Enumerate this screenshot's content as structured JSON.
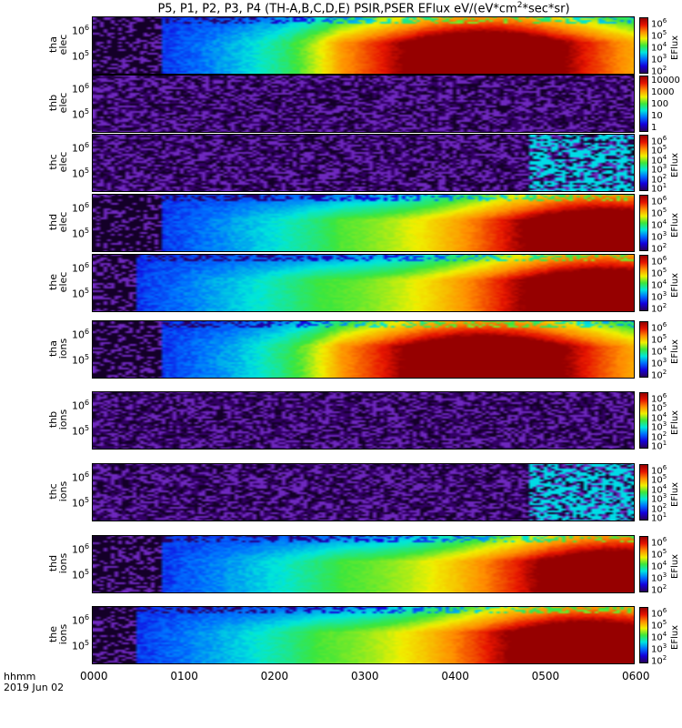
{
  "title_parts": {
    "main": "P5, P1, P2, P3, P4 (TH-A,B,C,D,E) PSIR,PSER EFlux eV/(eV*cm",
    "sup": "2",
    "tail": "*sec*sr)"
  },
  "x_axis": {
    "label_line1": "hhmm",
    "label_line2": "2019 Jun 02",
    "ticks": [
      "0000",
      "0100",
      "0200",
      "0300",
      "0400",
      "0500",
      "0600"
    ]
  },
  "chart_data": [
    {
      "type": "heatmap",
      "probe": "tha",
      "species": "elec",
      "ylabel_lines": [
        "tha",
        "elec"
      ],
      "y_ticks": [
        "10",
        "10"
      ],
      "y_tick_exps": [
        "6",
        "5"
      ],
      "cbar_ticks": [
        {
          "base": "10",
          "exp": "6"
        },
        {
          "base": "10",
          "exp": "5"
        },
        {
          "base": "10",
          "exp": "4"
        },
        {
          "base": "10",
          "exp": "3"
        },
        {
          "base": "10",
          "exp": "2"
        }
      ],
      "cbar_title": "EFlux",
      "data_onset_hhmm": "0045",
      "peak_eflux_time_hhmm": "0420",
      "peak_eflux": 1000000
    },
    {
      "type": "heatmap",
      "probe": "thb",
      "species": "elec",
      "ylabel_lines": [
        "thb",
        "elec"
      ],
      "y_ticks": [
        "10",
        "10"
      ],
      "y_tick_exps": [
        "6",
        "5"
      ],
      "cbar_ticks": [
        {
          "base": "10000",
          "exp": ""
        },
        {
          "base": "1000",
          "exp": ""
        },
        {
          "base": "100",
          "exp": ""
        },
        {
          "base": "10",
          "exp": ""
        },
        {
          "base": "1",
          "exp": ""
        }
      ],
      "cbar_title": "",
      "noise_only": true
    },
    {
      "type": "heatmap",
      "probe": "thc",
      "species": "elec",
      "ylabel_lines": [
        "thc",
        "elec"
      ],
      "y_ticks": [
        "10",
        "10"
      ],
      "y_tick_exps": [
        "6",
        "5"
      ],
      "cbar_ticks": [
        {
          "base": "10",
          "exp": "6"
        },
        {
          "base": "10",
          "exp": "5"
        },
        {
          "base": "10",
          "exp": "4"
        },
        {
          "base": "10",
          "exp": "3"
        },
        {
          "base": "10",
          "exp": "2"
        },
        {
          "base": "10",
          "exp": "1"
        }
      ],
      "cbar_title": "EFlux",
      "noise_only": true,
      "burst_start_hhmm": "0450"
    },
    {
      "type": "heatmap",
      "probe": "thd",
      "species": "elec",
      "ylabel_lines": [
        "thd",
        "elec"
      ],
      "y_ticks": [
        "10",
        "10"
      ],
      "y_tick_exps": [
        "6",
        "5"
      ],
      "cbar_ticks": [
        {
          "base": "10",
          "exp": "6"
        },
        {
          "base": "10",
          "exp": "5"
        },
        {
          "base": "10",
          "exp": "4"
        },
        {
          "base": "10",
          "exp": "3"
        },
        {
          "base": "10",
          "exp": "2"
        }
      ],
      "cbar_title": "EFlux",
      "data_onset_hhmm": "0045",
      "peak_eflux_time_hhmm": "0540",
      "peak_eflux": 1000000
    },
    {
      "type": "heatmap",
      "probe": "the",
      "species": "elec",
      "ylabel_lines": [
        "the",
        "elec"
      ],
      "y_ticks": [
        "10",
        "10"
      ],
      "y_tick_exps": [
        "6",
        "5"
      ],
      "cbar_ticks": [
        {
          "base": "10",
          "exp": "6"
        },
        {
          "base": "10",
          "exp": "5"
        },
        {
          "base": "10",
          "exp": "4"
        },
        {
          "base": "10",
          "exp": "3"
        },
        {
          "base": "10",
          "exp": "2"
        }
      ],
      "cbar_title": "EFlux",
      "data_onset_hhmm": "0030",
      "peak_eflux_time_hhmm": "0540",
      "peak_eflux": 1000000
    },
    {
      "type": "heatmap",
      "probe": "tha",
      "species": "ions",
      "ylabel_lines": [
        "tha",
        "ions"
      ],
      "y_ticks": [
        "10",
        "10"
      ],
      "y_tick_exps": [
        "6",
        "5"
      ],
      "cbar_ticks": [
        {
          "base": "10",
          "exp": "6"
        },
        {
          "base": "10",
          "exp": "5"
        },
        {
          "base": "10",
          "exp": "4"
        },
        {
          "base": "10",
          "exp": "3"
        },
        {
          "base": "10",
          "exp": "2"
        }
      ],
      "cbar_title": "EFlux",
      "data_onset_hhmm": "0045",
      "peak_eflux_time_hhmm": "0420",
      "peak_eflux": 1000000
    },
    {
      "type": "heatmap",
      "probe": "thb",
      "species": "ions",
      "ylabel_lines": [
        "thb",
        "ions"
      ],
      "y_ticks": [
        "10",
        "10"
      ],
      "y_tick_exps": [
        "6",
        "5"
      ],
      "cbar_ticks": [
        {
          "base": "10",
          "exp": "6"
        },
        {
          "base": "10",
          "exp": "5"
        },
        {
          "base": "10",
          "exp": "4"
        },
        {
          "base": "10",
          "exp": "3"
        },
        {
          "base": "10",
          "exp": "2"
        },
        {
          "base": "10",
          "exp": "1"
        }
      ],
      "cbar_title": "EFlux",
      "noise_only": true
    },
    {
      "type": "heatmap",
      "probe": "thc",
      "species": "ions",
      "ylabel_lines": [
        "thc",
        "ions"
      ],
      "y_ticks": [
        "10",
        "10"
      ],
      "y_tick_exps": [
        "6",
        "5"
      ],
      "cbar_ticks": [
        {
          "base": "10",
          "exp": "6"
        },
        {
          "base": "10",
          "exp": "5"
        },
        {
          "base": "10",
          "exp": "4"
        },
        {
          "base": "10",
          "exp": "3"
        },
        {
          "base": "10",
          "exp": "2"
        },
        {
          "base": "10",
          "exp": "1"
        }
      ],
      "cbar_title": "EFlux",
      "noise_only": true,
      "burst_start_hhmm": "0450"
    },
    {
      "type": "heatmap",
      "probe": "thd",
      "species": "ions",
      "ylabel_lines": [
        "thd",
        "ions"
      ],
      "y_ticks": [
        "10",
        "10"
      ],
      "y_tick_exps": [
        "6",
        "5"
      ],
      "cbar_ticks": [
        {
          "base": "10",
          "exp": "6"
        },
        {
          "base": "10",
          "exp": "5"
        },
        {
          "base": "10",
          "exp": "4"
        },
        {
          "base": "10",
          "exp": "3"
        },
        {
          "base": "10",
          "exp": "2"
        }
      ],
      "cbar_title": "EFlux",
      "data_onset_hhmm": "0045",
      "peak_eflux_time_hhmm": "0550",
      "peak_eflux": 1000000
    },
    {
      "type": "heatmap",
      "probe": "the",
      "species": "ions",
      "ylabel_lines": [
        "the",
        "ions"
      ],
      "y_ticks": [
        "10",
        "10"
      ],
      "y_tick_exps": [
        "6",
        "5"
      ],
      "cbar_ticks": [
        {
          "base": "10",
          "exp": "6"
        },
        {
          "base": "10",
          "exp": "5"
        },
        {
          "base": "10",
          "exp": "4"
        },
        {
          "base": "10",
          "exp": "3"
        },
        {
          "base": "10",
          "exp": "2"
        }
      ],
      "cbar_title": "EFlux",
      "data_onset_hhmm": "0030",
      "peak_eflux_time_hhmm": "0530",
      "peak_eflux": 1000000
    }
  ]
}
